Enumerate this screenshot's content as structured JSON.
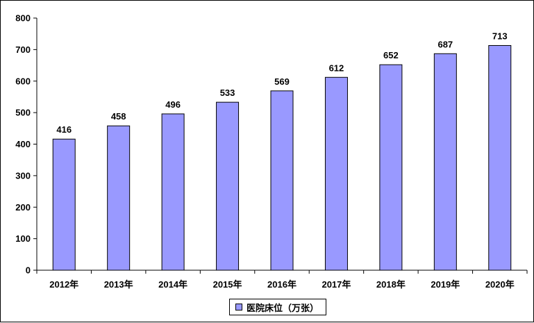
{
  "chart_data": {
    "type": "bar",
    "categories": [
      "2012年",
      "2013年",
      "2014年",
      "2015年",
      "2016年",
      "2017年",
      "2018年",
      "2019年",
      "2020年"
    ],
    "series": [
      {
        "name": "医院床位（万张）",
        "values": [
          416,
          458,
          496,
          533,
          569,
          612,
          652,
          687,
          713
        ]
      }
    ],
    "ylim": [
      0,
      800
    ],
    "yticks": [
      0,
      100,
      200,
      300,
      400,
      500,
      600,
      700,
      800
    ],
    "grid": false,
    "legend_position": "bottom",
    "colors": {
      "bar": "#9999ff",
      "bar_stroke": "#000000"
    }
  }
}
